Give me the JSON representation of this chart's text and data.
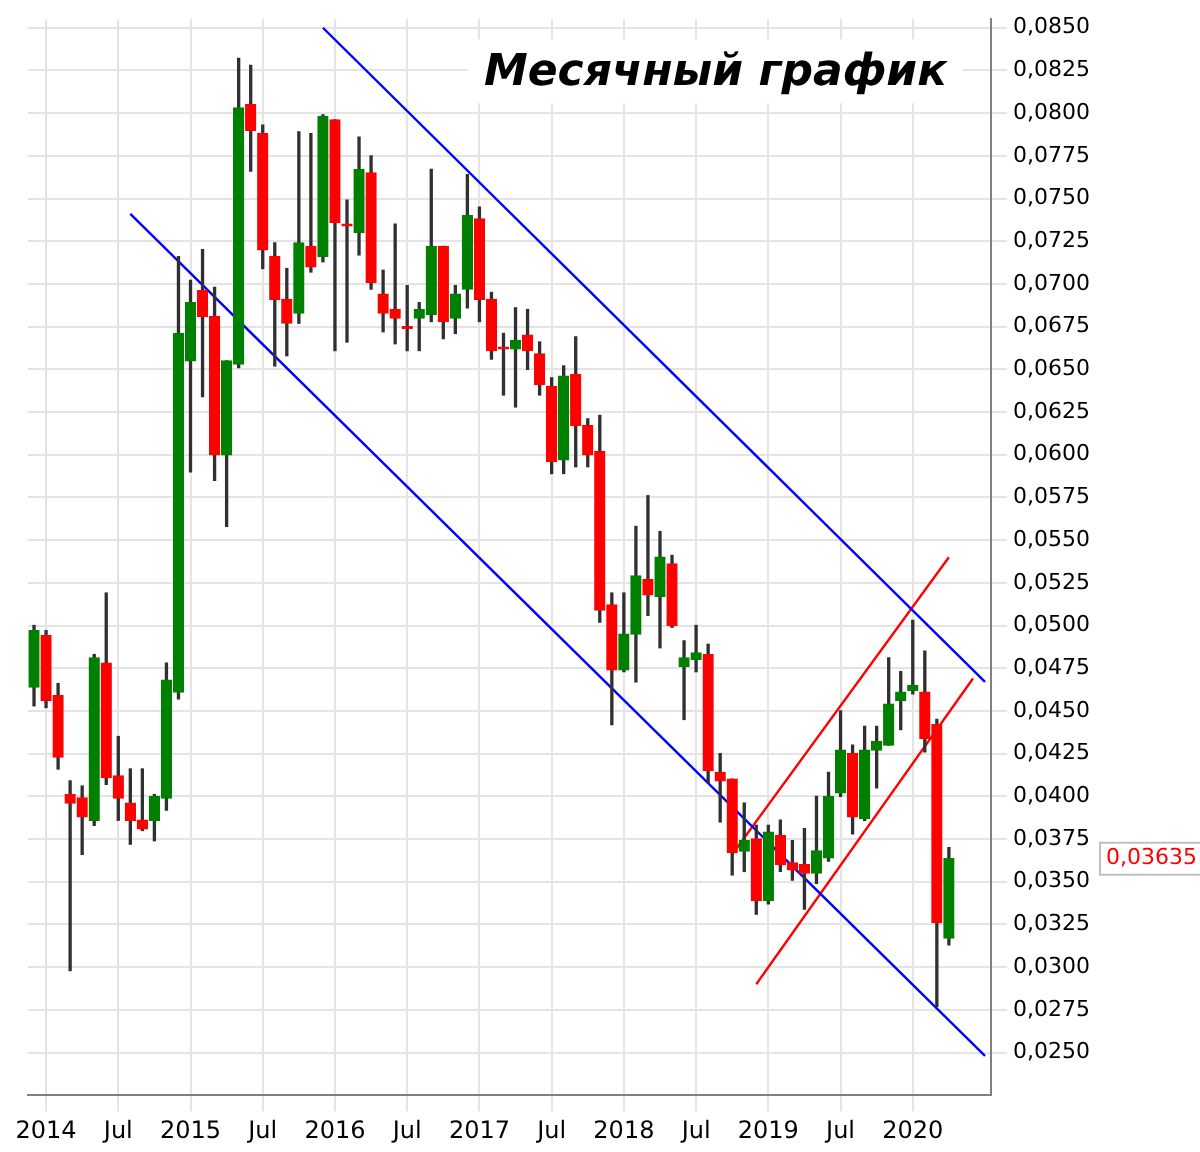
{
  "chart_data": {
    "type": "candlestick",
    "title": "Месячный график",
    "categories": [
      null,
      "2014",
      null,
      null,
      null,
      null,
      null,
      "Jul",
      null,
      null,
      null,
      null,
      null,
      "2015",
      null,
      null,
      null,
      null,
      null,
      "Jul",
      null,
      null,
      null,
      null,
      null,
      "2016",
      null,
      null,
      null,
      null,
      null,
      "Jul",
      null,
      null,
      null,
      null,
      null,
      "2017",
      null,
      null,
      null,
      null,
      null,
      "Jul",
      null,
      null,
      null,
      null,
      null,
      "2018",
      null,
      null,
      null,
      null,
      null,
      "Jul",
      null,
      null,
      null,
      null,
      null,
      "2019",
      null,
      null,
      null,
      null,
      null,
      "Jul",
      null,
      null,
      null,
      null,
      null,
      "2020",
      null,
      null,
      null,
      null,
      null,
      null
    ],
    "ohlc": [
      [
        0.0464,
        0.05,
        0.0453,
        0.0497
      ],
      [
        0.0494,
        0.0497,
        0.0452,
        0.0456
      ],
      [
        0.0459,
        0.0466,
        0.0416,
        0.0423
      ],
      [
        0.0401,
        0.0409,
        0.0298,
        0.0396
      ],
      [
        0.0399,
        0.0406,
        0.0366,
        0.0388
      ],
      [
        0.0386,
        0.0483,
        0.0383,
        0.0481
      ],
      [
        0.0478,
        0.0519,
        0.0407,
        0.0411
      ],
      [
        0.0412,
        0.0435,
        0.0386,
        0.0399
      ],
      [
        0.0396,
        0.0416,
        0.0372,
        0.0386
      ],
      [
        0.0386,
        0.0416,
        0.038,
        0.0381
      ],
      [
        0.0386,
        0.0401,
        0.0374,
        0.04
      ],
      [
        0.0399,
        0.0478,
        0.0392,
        0.0468
      ],
      [
        0.0461,
        0.0716,
        0.0457,
        0.0671
      ],
      [
        0.0655,
        0.0702,
        0.059,
        0.0689
      ],
      [
        0.0696,
        0.072,
        0.0634,
        0.0681
      ],
      [
        0.0681,
        0.0698,
        0.0585,
        0.06
      ],
      [
        0.06,
        0.0655,
        0.0558,
        0.0655
      ],
      [
        0.0653,
        0.0832,
        0.0651,
        0.0803
      ],
      [
        0.0805,
        0.0828,
        0.0766,
        0.079
      ],
      [
        0.0788,
        0.0793,
        0.0709,
        0.072
      ],
      [
        0.0716,
        0.0724,
        0.0652,
        0.0691
      ],
      [
        0.0691,
        0.0709,
        0.0658,
        0.0677
      ],
      [
        0.0683,
        0.0789,
        0.0677,
        0.0724
      ],
      [
        0.0722,
        0.0788,
        0.0707,
        0.071
      ],
      [
        0.0716,
        0.0799,
        0.0713,
        0.0798
      ],
      [
        0.0796,
        0.0796,
        0.0661,
        0.0736
      ],
      [
        0.0735,
        0.0749,
        0.0666,
        0.0734
      ],
      [
        0.073,
        0.0786,
        0.0717,
        0.0767
      ],
      [
        0.0765,
        0.0775,
        0.0697,
        0.0701
      ],
      [
        0.0694,
        0.0708,
        0.0672,
        0.0683
      ],
      [
        0.0685,
        0.0735,
        0.0665,
        0.068
      ],
      [
        0.0675,
        0.0699,
        0.0661,
        0.0674
      ],
      [
        0.068,
        0.0689,
        0.0661,
        0.0685
      ],
      [
        0.0682,
        0.0767,
        0.0678,
        0.0722
      ],
      [
        0.0722,
        0.0722,
        0.0668,
        0.0678
      ],
      [
        0.068,
        0.0699,
        0.0671,
        0.0694
      ],
      [
        0.0697,
        0.0764,
        0.0686,
        0.074
      ],
      [
        0.0738,
        0.0745,
        0.0678,
        0.0691
      ],
      [
        0.0691,
        0.0695,
        0.0656,
        0.0661
      ],
      [
        0.0663,
        0.0671,
        0.0635,
        0.0662
      ],
      [
        0.0662,
        0.0686,
        0.0628,
        0.0667
      ],
      [
        0.067,
        0.0685,
        0.065,
        0.0661
      ],
      [
        0.0659,
        0.0666,
        0.0635,
        0.0641
      ],
      [
        0.064,
        0.0645,
        0.0589,
        0.0596
      ],
      [
        0.0597,
        0.0652,
        0.0589,
        0.0646
      ],
      [
        0.0647,
        0.0669,
        0.0593,
        0.0617
      ],
      [
        0.0617,
        0.0621,
        0.0593,
        0.06
      ],
      [
        0.0602,
        0.0623,
        0.0502,
        0.0509
      ],
      [
        0.0512,
        0.0519,
        0.0442,
        0.0474
      ],
      [
        0.0474,
        0.0519,
        0.0473,
        0.0495
      ],
      [
        0.0495,
        0.0558,
        0.0467,
        0.0529
      ],
      [
        0.0527,
        0.0576,
        0.0506,
        0.0518
      ],
      [
        0.0517,
        0.0555,
        0.0487,
        0.054
      ],
      [
        0.0536,
        0.0541,
        0.0499,
        0.05
      ],
      [
        0.0476,
        0.0491,
        0.0445,
        0.0481
      ],
      [
        0.048,
        0.05,
        0.0473,
        0.0484
      ],
      [
        0.0483,
        0.0489,
        0.0408,
        0.0415
      ],
      [
        0.0414,
        0.0425,
        0.0385,
        0.0409
      ],
      [
        0.041,
        0.041,
        0.0354,
        0.0367
      ],
      [
        0.0368,
        0.0396,
        0.0356,
        0.0374
      ],
      [
        0.0375,
        0.0383,
        0.0331,
        0.0339
      ],
      [
        0.0339,
        0.0383,
        0.0337,
        0.0379
      ],
      [
        0.0377,
        0.0386,
        0.0356,
        0.036
      ],
      [
        0.0361,
        0.0374,
        0.0351,
        0.0357
      ],
      [
        0.036,
        0.0381,
        0.0334,
        0.0355
      ],
      [
        0.0355,
        0.04,
        0.0349,
        0.0368
      ],
      [
        0.0364,
        0.0414,
        0.0362,
        0.04
      ],
      [
        0.0402,
        0.045,
        0.04,
        0.0427
      ],
      [
        0.0425,
        0.043,
        0.0378,
        0.0388
      ],
      [
        0.0387,
        0.0441,
        0.0386,
        0.0427
      ],
      [
        0.0427,
        0.0441,
        0.0405,
        0.0432
      ],
      [
        0.043,
        0.0481,
        0.043,
        0.0454
      ],
      [
        0.0456,
        0.0473,
        0.0439,
        0.0461
      ],
      [
        0.0462,
        0.0503,
        0.046,
        0.0465
      ],
      [
        0.0461,
        0.0485,
        0.0426,
        0.0434
      ],
      [
        0.0442,
        0.0445,
        0.0277,
        0.0326
      ],
      [
        0.0317,
        0.037,
        0.0313,
        0.03635
      ],
      null,
      null,
      null
    ],
    "colors": [
      "#008000",
      "#ff0000",
      "#ff0000",
      "#ff0000",
      "#ff0000",
      "#008000",
      "#ff0000",
      "#ff0000",
      "#ff0000",
      "#ff0000",
      "#008000",
      "#008000",
      "#008000",
      "#008000",
      "#ff0000",
      "#ff0000",
      "#008000",
      "#008000",
      "#ff0000",
      "#ff0000",
      "#ff0000",
      "#ff0000",
      "#008000",
      "#ff0000",
      "#008000",
      "#ff0000",
      "#ff0000",
      "#008000",
      "#ff0000",
      "#ff0000",
      "#ff0000",
      "#ff0000",
      "#008000",
      "#008000",
      "#ff0000",
      "#008000",
      "#008000",
      "#ff0000",
      "#ff0000",
      "#ff0000",
      "#008000",
      "#ff0000",
      "#ff0000",
      "#ff0000",
      "#008000",
      "#ff0000",
      "#ff0000",
      "#ff0000",
      "#ff0000",
      "#008000",
      "#008000",
      "#ff0000",
      "#008000",
      "#ff0000",
      "#008000",
      "#008000",
      "#ff0000",
      "#ff0000",
      "#ff0000",
      "#008000",
      "#ff0000",
      "#008000",
      "#ff0000",
      "#ff0000",
      "#ff0000",
      "#008000",
      "#008000",
      "#008000",
      "#ff0000",
      "#008000",
      "#008000",
      "#008000",
      "#008000",
      "#008000",
      "#ff0000",
      "#ff0000",
      "#008000",
      null,
      null,
      null
    ],
    "series": [
      {
        "type": "line",
        "color": "#0000ff",
        "values": [
          null,
          null,
          null,
          null,
          null,
          null,
          null,
          null,
          null,
          null,
          null,
          null,
          null,
          null,
          null,
          null,
          null,
          null,
          null,
          null,
          null,
          null,
          null,
          null,
          0.085,
          null,
          null,
          null,
          null,
          null,
          null,
          null,
          null,
          null,
          null,
          null,
          null,
          null,
          null,
          null,
          null,
          null,
          null,
          null,
          null,
          null,
          null,
          null,
          null,
          null,
          null,
          null,
          null,
          null,
          null,
          null,
          null,
          null,
          null,
          null,
          null,
          null,
          null,
          null,
          null,
          null,
          null,
          null,
          null,
          null,
          null,
          null,
          null,
          null,
          null,
          null,
          null,
          null,
          null,
          0.0467
        ]
      },
      {
        "type": "line",
        "color": "#0000ff",
        "values": [
          null,
          null,
          null,
          null,
          null,
          null,
          null,
          null,
          0.0741,
          null,
          null,
          null,
          null,
          null,
          null,
          null,
          null,
          null,
          null,
          null,
          null,
          null,
          null,
          null,
          null,
          null,
          null,
          null,
          null,
          null,
          null,
          null,
          null,
          null,
          null,
          null,
          null,
          null,
          null,
          null,
          null,
          null,
          null,
          null,
          null,
          null,
          null,
          null,
          null,
          null,
          null,
          null,
          null,
          null,
          null,
          null,
          null,
          null,
          null,
          null,
          null,
          null,
          null,
          null,
          null,
          null,
          null,
          null,
          null,
          null,
          null,
          null,
          null,
          null,
          null,
          null,
          null,
          null,
          null,
          0.0248
        ]
      },
      {
        "type": "line",
        "color": "#ff0000",
        "values": [
          null,
          null,
          null,
          null,
          null,
          null,
          null,
          null,
          null,
          null,
          null,
          null,
          null,
          null,
          null,
          null,
          null,
          null,
          null,
          null,
          null,
          null,
          null,
          null,
          null,
          null,
          null,
          null,
          null,
          null,
          null,
          null,
          null,
          null,
          null,
          null,
          null,
          null,
          null,
          null,
          null,
          null,
          null,
          null,
          null,
          null,
          null,
          null,
          null,
          null,
          null,
          null,
          null,
          null,
          null,
          null,
          null,
          null,
          0.0366,
          null,
          null,
          null,
          null,
          null,
          null,
          null,
          null,
          null,
          null,
          null,
          null,
          null,
          null,
          null,
          null,
          null,
          0.054,
          null,
          null,
          null
        ]
      },
      {
        "type": "line",
        "color": "#ff0000",
        "values": [
          null,
          null,
          null,
          null,
          null,
          null,
          null,
          null,
          null,
          null,
          null,
          null,
          null,
          null,
          null,
          null,
          null,
          null,
          null,
          null,
          null,
          null,
          null,
          null,
          null,
          null,
          null,
          null,
          null,
          null,
          null,
          null,
          null,
          null,
          null,
          null,
          null,
          null,
          null,
          null,
          null,
          null,
          null,
          null,
          null,
          null,
          null,
          null,
          null,
          null,
          null,
          null,
          null,
          null,
          null,
          null,
          null,
          null,
          null,
          null,
          0.029,
          null,
          null,
          null,
          null,
          null,
          null,
          null,
          null,
          null,
          null,
          null,
          null,
          null,
          null,
          null,
          null,
          null,
          0.0469,
          null
        ]
      }
    ],
    "ylim": [
      0.0225,
      0.0855
    ],
    "yticks": [
      {
        "value": 0.025,
        "label": "0,0250"
      },
      {
        "value": 0.0275,
        "label": "0,0275"
      },
      {
        "value": 0.03,
        "label": "0,0300"
      },
      {
        "value": 0.0325,
        "label": "0,0325"
      },
      {
        "value": 0.035,
        "label": "0,0350"
      },
      {
        "value": 0.0375,
        "label": "0,0375"
      },
      {
        "value": 0.04,
        "label": "0,0400"
      },
      {
        "value": 0.0425,
        "label": "0,0425"
      },
      {
        "value": 0.045,
        "label": "0,0450"
      },
      {
        "value": 0.0475,
        "label": "0,0475"
      },
      {
        "value": 0.05,
        "label": "0,0500"
      },
      {
        "value": 0.0525,
        "label": "0,0525"
      },
      {
        "value": 0.055,
        "label": "0,0550"
      },
      {
        "value": 0.0575,
        "label": "0,0575"
      },
      {
        "value": 0.06,
        "label": "0,0600"
      },
      {
        "value": 0.0625,
        "label": "0,0625"
      },
      {
        "value": 0.065,
        "label": "0,0650"
      },
      {
        "value": 0.0675,
        "label": "0,0675"
      },
      {
        "value": 0.07,
        "label": "0,0700"
      },
      {
        "value": 0.0725,
        "label": "0,0725"
      },
      {
        "value": 0.075,
        "label": "0,0750"
      },
      {
        "value": 0.0775,
        "label": "0,0775"
      },
      {
        "value": 0.08,
        "label": "0,0800"
      },
      {
        "value": 0.0825,
        "label": "0,0825"
      },
      {
        "value": 0.085,
        "label": "0,0850"
      }
    ],
    "annotations": [
      "0,03635"
    ],
    "grid": true,
    "legend": false
  }
}
